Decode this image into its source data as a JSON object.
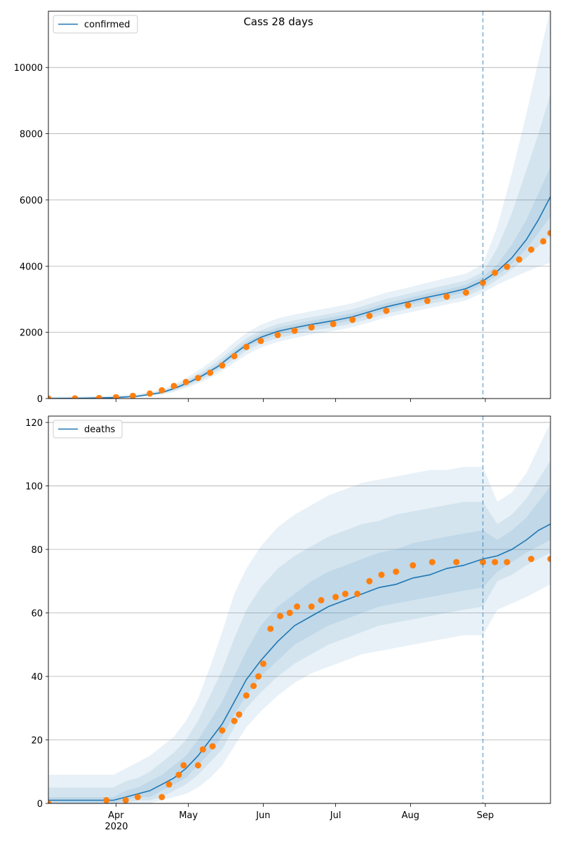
{
  "figure": {
    "title": "Cass 28 days",
    "colors": {
      "model": "#1f77b4",
      "observed": "#ff7f0e",
      "grid": "#b0b0b0",
      "band": "#1f77b4"
    },
    "x_ticks": [
      {
        "label": "Apr",
        "date": "2020-04-01"
      },
      {
        "label": "May",
        "date": "2020-05-01"
      },
      {
        "label": "Jun",
        "date": "2020-06-01"
      },
      {
        "label": "Jul",
        "date": "2020-07-01"
      },
      {
        "label": "Aug",
        "date": "2020-08-01"
      },
      {
        "label": "Sep",
        "date": "2020-09-01"
      }
    ],
    "x_year_label": "2020",
    "x_range": [
      "2020-03-04",
      "2020-09-28"
    ],
    "forecast_start": "2020-08-31"
  },
  "chart_data": [
    {
      "type": "line",
      "legend": "confirmed",
      "legend_position": "top-left",
      "grid": "horizontal",
      "ylim": [
        0,
        11700
      ],
      "yticks": [
        0,
        2000,
        4000,
        6000,
        8000,
        10000
      ],
      "model": {
        "x": [
          "2020-03-04",
          "2020-03-20",
          "2020-04-01",
          "2020-04-10",
          "2020-04-20",
          "2020-04-25",
          "2020-05-01",
          "2020-05-07",
          "2020-05-13",
          "2020-05-19",
          "2020-05-25",
          "2020-05-31",
          "2020-06-07",
          "2020-06-14",
          "2020-06-21",
          "2020-06-30",
          "2020-07-08",
          "2020-07-15",
          "2020-07-22",
          "2020-07-31",
          "2020-08-08",
          "2020-08-16",
          "2020-08-24",
          "2020-08-31",
          "2020-09-06",
          "2020-09-12",
          "2020-09-18",
          "2020-09-23",
          "2020-09-28"
        ],
        "y": [
          0,
          10,
          30,
          70,
          180,
          300,
          480,
          700,
          960,
          1300,
          1620,
          1850,
          2030,
          2140,
          2240,
          2350,
          2470,
          2620,
          2770,
          2920,
          3060,
          3180,
          3320,
          3550,
          3850,
          4250,
          4800,
          5400,
          6100
        ]
      },
      "bands": [
        {
          "level": "outer",
          "lower": [
            0,
            0,
            15,
            45,
            120,
            200,
            340,
            520,
            740,
            1030,
            1320,
            1540,
            1710,
            1830,
            1940,
            2040,
            2160,
            2300,
            2450,
            2590,
            2720,
            2840,
            2960,
            3200,
            3440,
            3640,
            3830,
            3980,
            4100
          ],
          "upper": [
            60,
            70,
            90,
            140,
            270,
            430,
            660,
            940,
            1260,
            1640,
            1980,
            2230,
            2420,
            2540,
            2640,
            2760,
            2880,
            3040,
            3200,
            3350,
            3500,
            3640,
            3780,
            4050,
            5200,
            6800,
            8600,
            10200,
            11800
          ]
        },
        {
          "level": "mid",
          "lower": [
            0,
            0,
            20,
            55,
            140,
            235,
            390,
            590,
            830,
            1140,
            1440,
            1660,
            1830,
            1940,
            2050,
            2150,
            2270,
            2410,
            2560,
            2710,
            2840,
            2960,
            3080,
            3320,
            3590,
            3900,
            4250,
            4600,
            4900
          ],
          "upper": [
            35,
            45,
            55,
            100,
            230,
            370,
            580,
            830,
            1120,
            1480,
            1820,
            2060,
            2250,
            2370,
            2460,
            2580,
            2700,
            2860,
            3010,
            3160,
            3300,
            3430,
            3570,
            3820,
            4550,
            5600,
            6900,
            8000,
            9200
          ]
        },
        {
          "level": "inner",
          "lower": [
            0,
            0,
            25,
            62,
            160,
            270,
            440,
            650,
            900,
            1230,
            1540,
            1760,
            1930,
            2040,
            2150,
            2250,
            2370,
            2520,
            2670,
            2820,
            2960,
            3080,
            3210,
            3440,
            3720,
            4070,
            4520,
            5000,
            5500
          ],
          "upper": [
            15,
            20,
            40,
            85,
            205,
            335,
            530,
            760,
            1030,
            1380,
            1710,
            1950,
            2140,
            2250,
            2350,
            2460,
            2580,
            2730,
            2880,
            3030,
            3170,
            3290,
            3440,
            3680,
            4050,
            4650,
            5400,
            6200,
            7000
          ]
        }
      ],
      "observed": {
        "x": [
          "2020-03-04",
          "2020-03-15",
          "2020-03-25",
          "2020-04-01",
          "2020-04-08",
          "2020-04-15",
          "2020-04-20",
          "2020-04-25",
          "2020-04-30",
          "2020-05-05",
          "2020-05-10",
          "2020-05-15",
          "2020-05-20",
          "2020-05-25",
          "2020-05-31",
          "2020-06-07",
          "2020-06-14",
          "2020-06-21",
          "2020-06-30",
          "2020-07-08",
          "2020-07-15",
          "2020-07-22",
          "2020-07-31",
          "2020-08-08",
          "2020-08-16",
          "2020-08-24",
          "2020-08-31",
          "2020-09-05",
          "2020-09-10",
          "2020-09-15",
          "2020-09-20",
          "2020-09-25",
          "2020-09-28"
        ],
        "y": [
          0,
          5,
          15,
          40,
          80,
          150,
          250,
          380,
          500,
          620,
          780,
          1000,
          1280,
          1560,
          1740,
          1920,
          2050,
          2150,
          2250,
          2380,
          2500,
          2650,
          2820,
          2950,
          3080,
          3200,
          3500,
          3800,
          3980,
          4200,
          4500,
          4750,
          5000
        ]
      }
    },
    {
      "type": "line",
      "legend": "deaths",
      "legend_position": "top-left",
      "grid": "horizontal",
      "ylim": [
        0,
        122
      ],
      "yticks": [
        0,
        20,
        40,
        60,
        80,
        100,
        120
      ],
      "model": {
        "x": [
          "2020-03-04",
          "2020-03-31",
          "2020-04-05",
          "2020-04-10",
          "2020-04-15",
          "2020-04-20",
          "2020-04-25",
          "2020-04-30",
          "2020-05-05",
          "2020-05-10",
          "2020-05-15",
          "2020-05-20",
          "2020-05-25",
          "2020-05-31",
          "2020-06-07",
          "2020-06-14",
          "2020-06-21",
          "2020-06-28",
          "2020-07-05",
          "2020-07-12",
          "2020-07-19",
          "2020-07-26",
          "2020-08-02",
          "2020-08-09",
          "2020-08-16",
          "2020-08-23",
          "2020-08-31",
          "2020-09-06",
          "2020-09-12",
          "2020-09-18",
          "2020-09-23",
          "2020-09-28"
        ],
        "y": [
          1,
          1,
          2,
          3,
          4,
          6,
          8,
          11,
          15,
          20,
          25,
          32,
          39,
          45,
          51,
          56,
          59,
          62,
          64,
          66,
          68,
          69,
          71,
          72,
          74,
          75,
          77,
          78,
          80,
          83,
          86,
          88
        ]
      },
      "bands": [
        {
          "level": "outer",
          "lower": [
            0,
            0,
            0,
            0,
            0,
            1,
            2,
            3,
            5,
            8,
            12,
            18,
            24,
            29,
            34,
            38,
            41,
            43,
            45,
            47,
            48,
            49,
            50,
            51,
            52,
            53,
            53,
            61,
            63,
            65,
            67,
            69
          ],
          "upper": [
            9,
            9,
            11,
            13,
            15,
            18,
            21,
            26,
            33,
            43,
            54,
            66,
            74,
            81,
            87,
            91,
            94,
            97,
            99,
            101,
            102,
            103,
            104,
            105,
            105,
            106,
            106,
            95,
            98,
            104,
            112,
            120
          ]
        },
        {
          "level": "mid",
          "lower": [
            0,
            0,
            0,
            1,
            1,
            2,
            4,
            6,
            9,
            13,
            17,
            24,
            30,
            35,
            40,
            44,
            47,
            50,
            52,
            54,
            56,
            57,
            58,
            59,
            60,
            61,
            62,
            70,
            72,
            75,
            77,
            79
          ],
          "upper": [
            5,
            5,
            7,
            8,
            10,
            13,
            16,
            20,
            26,
            34,
            42,
            52,
            61,
            68,
            74,
            78,
            81,
            84,
            86,
            88,
            89,
            91,
            92,
            93,
            94,
            95,
            95,
            88,
            91,
            96,
            102,
            108
          ]
        },
        {
          "level": "inner",
          "lower": [
            0,
            0,
            1,
            2,
            2,
            4,
            6,
            8,
            12,
            16,
            21,
            28,
            34,
            40,
            45,
            50,
            53,
            56,
            58,
            60,
            62,
            63,
            64,
            65,
            66,
            67,
            68,
            73,
            76,
            79,
            81,
            83
          ],
          "upper": [
            2,
            2,
            4,
            5,
            7,
            9,
            12,
            15,
            20,
            26,
            32,
            40,
            48,
            56,
            62,
            66,
            70,
            73,
            75,
            77,
            79,
            80,
            82,
            83,
            84,
            85,
            86,
            83,
            86,
            90,
            95,
            100
          ]
        }
      ],
      "observed": {
        "x": [
          "2020-03-04",
          "2020-03-28",
          "2020-04-05",
          "2020-04-10",
          "2020-04-20",
          "2020-04-23",
          "2020-04-27",
          "2020-04-29",
          "2020-05-05",
          "2020-05-07",
          "2020-05-11",
          "2020-05-15",
          "2020-05-20",
          "2020-05-22",
          "2020-05-25",
          "2020-05-28",
          "2020-05-30",
          "2020-06-01",
          "2020-06-04",
          "2020-06-08",
          "2020-06-12",
          "2020-06-15",
          "2020-06-21",
          "2020-06-25",
          "2020-07-01",
          "2020-07-05",
          "2020-07-10",
          "2020-07-15",
          "2020-07-20",
          "2020-07-26",
          "2020-08-02",
          "2020-08-10",
          "2020-08-20",
          "2020-08-31",
          "2020-09-05",
          "2020-09-10",
          "2020-09-20",
          "2020-09-28"
        ],
        "y": [
          0,
          1,
          1,
          2,
          2,
          6,
          9,
          12,
          12,
          17,
          18,
          23,
          26,
          28,
          34,
          37,
          40,
          44,
          55,
          59,
          60,
          62,
          62,
          64,
          65,
          66,
          66,
          70,
          72,
          73,
          75,
          76,
          76,
          76,
          76,
          76,
          77,
          77
        ]
      }
    }
  ]
}
